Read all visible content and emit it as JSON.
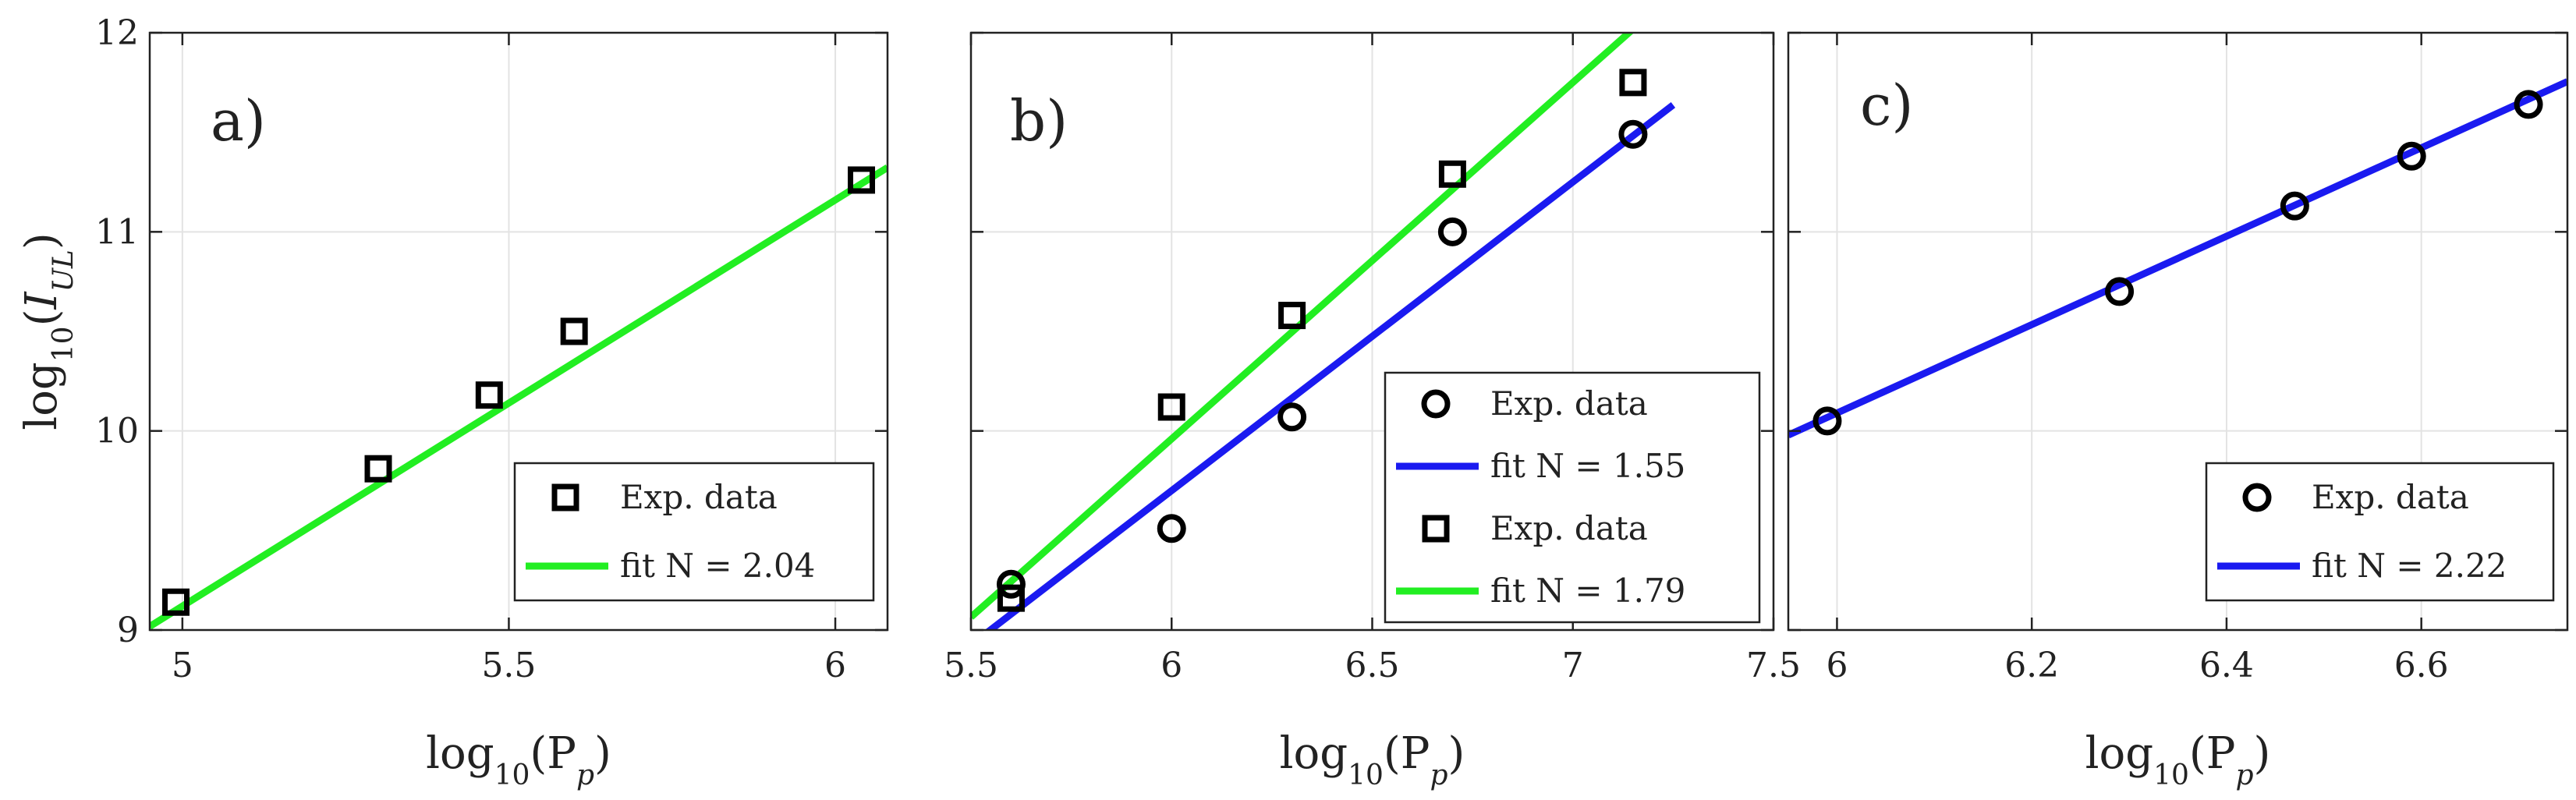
{
  "colors": {
    "green": "#22ee22",
    "blue": "#1a1af0",
    "marker": "#000000",
    "axis": "#222222",
    "grid": "#e3e3e3"
  },
  "chart_data": [
    {
      "type": "scatter",
      "panel_label": "a)",
      "xlabel": "log10(Pp)",
      "ylabel": "log10(IUL)",
      "xlim": [
        4.95,
        6.08
      ],
      "ylim": [
        9,
        12
      ],
      "xticks": [
        5,
        5.5,
        6
      ],
      "xtick_labels": [
        "5",
        "5.5",
        "6"
      ],
      "yticks": [
        9,
        10,
        11,
        12
      ],
      "ytick_labels": [
        "9",
        "10",
        "11",
        "12"
      ],
      "grid": true,
      "series": [
        {
          "name": "Exp. data",
          "kind": "markers",
          "marker": "square",
          "color": "#000000",
          "x": [
            4.99,
            5.3,
            5.47,
            5.6,
            6.04
          ],
          "y": [
            9.14,
            9.81,
            10.18,
            10.5,
            11.26
          ]
        },
        {
          "name": "fit N = 2.04",
          "kind": "line",
          "color": "#22ee22",
          "slope": 2.04,
          "intercept": -1.08
        }
      ],
      "legend": {
        "position": "bottom-right",
        "entries": [
          "Exp. data",
          "fit N = 2.04"
        ]
      }
    },
    {
      "type": "scatter",
      "panel_label": "b)",
      "xlabel": "log10(Pp)",
      "ylabel": "",
      "xlim": [
        5.5,
        7.5
      ],
      "ylim": [
        9,
        12
      ],
      "xticks": [
        5.5,
        6,
        6.5,
        7,
        7.5
      ],
      "xtick_labels": [
        "5.5",
        "6",
        "6.5",
        "7",
        "7.5"
      ],
      "yticks": [
        9,
        10,
        11,
        12
      ],
      "ytick_labels": [],
      "grid": true,
      "series": [
        {
          "name": "Exp. data",
          "kind": "markers",
          "marker": "circle",
          "color": "#000000",
          "x": [
            5.6,
            6.0,
            6.3,
            6.7,
            7.15
          ],
          "y": [
            9.23,
            9.51,
            10.07,
            11.0,
            11.49
          ]
        },
        {
          "name": "fit N = 1.55",
          "kind": "line",
          "color": "#1a1af0",
          "slope": 1.55,
          "intercept": 0.4,
          "x_range": [
            5.5,
            7.25
          ]
        },
        {
          "name": "Exp. data",
          "kind": "markers",
          "marker": "square",
          "color": "#000000",
          "x": [
            5.6,
            6.0,
            6.3,
            6.7,
            7.15
          ],
          "y": [
            9.16,
            10.12,
            10.58,
            11.29,
            11.75
          ]
        },
        {
          "name": "fit N = 1.79",
          "kind": "line",
          "color": "#22ee22",
          "slope": 1.79,
          "intercept": -0.78,
          "x_range": [
            5.5,
            7.25
          ]
        }
      ],
      "legend": {
        "position": "bottom-right",
        "entries": [
          "Exp. data",
          "fit N = 1.55",
          "Exp. data",
          "fit N = 1.79"
        ]
      }
    },
    {
      "type": "scatter",
      "panel_label": "c)",
      "xlabel": "log10(Pp)",
      "ylabel": "",
      "xlim": [
        5.95,
        6.75
      ],
      "ylim": [
        9,
        12
      ],
      "xticks": [
        6,
        6.2,
        6.4,
        6.6
      ],
      "xtick_labels": [
        "6",
        "6.2",
        "6.4",
        "6.6"
      ],
      "yticks": [
        9,
        10,
        11,
        12
      ],
      "ytick_labels": [],
      "grid": true,
      "series": [
        {
          "name": "Exp. data",
          "kind": "markers",
          "marker": "circle",
          "color": "#000000",
          "x": [
            5.99,
            6.29,
            6.47,
            6.59,
            6.71
          ],
          "y": [
            10.05,
            10.7,
            11.13,
            11.38,
            11.64
          ]
        },
        {
          "name": "fit N = 2.22",
          "kind": "line",
          "color": "#1a1af0",
          "slope": 2.22,
          "intercept": -3.23
        }
      ],
      "legend": {
        "position": "bottom-right",
        "entries": [
          "Exp. data",
          "fit N = 2.22"
        ]
      }
    }
  ]
}
